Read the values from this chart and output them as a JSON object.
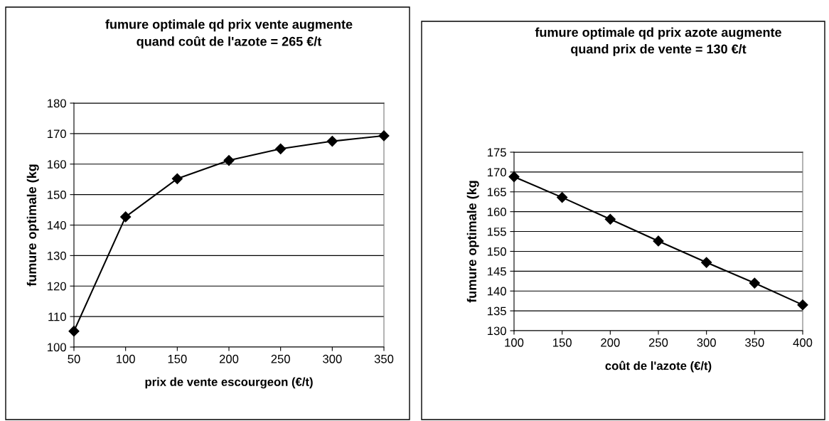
{
  "chart_data": [
    {
      "type": "line",
      "title": "fumure optimale qd prix vente augmente\nquand coût de l'azote = 265 €/t",
      "xlabel": "prix de vente escourgeon (€/t)",
      "ylabel": "fumure optimale (kg",
      "x": [
        50,
        100,
        150,
        200,
        250,
        300,
        350
      ],
      "series": [
        {
          "color": "#000000",
          "values": [
            105.2,
            142.7,
            155.2,
            161.2,
            165.0,
            167.5,
            169.3
          ]
        }
      ],
      "xlim": [
        50,
        350
      ],
      "xticks": [
        50,
        100,
        150,
        200,
        250,
        300,
        350
      ],
      "ylim": [
        100,
        180
      ],
      "yticks": [
        100,
        110,
        120,
        130,
        140,
        150,
        160,
        170,
        180
      ],
      "grid": "y",
      "marker": "diamond",
      "line_style": "solid"
    },
    {
      "type": "line",
      "title": "fumure optimale qd prix azote augmente\nquand prix de vente = 130 €/t",
      "xlabel": "coût de l'azote (€/t)",
      "ylabel": "fumure optimale (kg",
      "x": [
        100,
        150,
        200,
        250,
        300,
        350,
        400
      ],
      "series": [
        {
          "color": "#000000",
          "values": [
            168.8,
            163.6,
            158.1,
            152.6,
            147.2,
            142.0,
            136.5
          ]
        }
      ],
      "xlim": [
        100,
        400
      ],
      "xticks": [
        100,
        150,
        200,
        250,
        300,
        350,
        400
      ],
      "ylim": [
        130,
        175
      ],
      "yticks": [
        130,
        135,
        140,
        145,
        150,
        155,
        160,
        165,
        170,
        175
      ],
      "grid": "y",
      "marker": "diamond",
      "line_style": "solid"
    }
  ]
}
